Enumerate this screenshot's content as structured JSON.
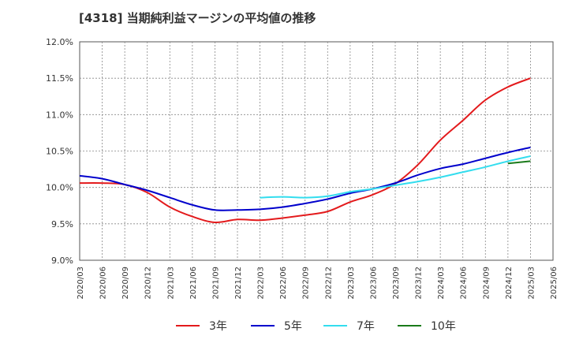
{
  "title": "[4318]  当期純利益マージンの平均値の推移",
  "chart_data": {
    "type": "line",
    "title": "[4318]  当期純利益マージンの平均値の推移",
    "xlabel": "",
    "ylabel": "",
    "ylim": [
      9.0,
      12.0
    ],
    "y_ticks": [
      "12.0%",
      "11.5%",
      "11.0%",
      "10.5%",
      "10.0%",
      "9.5%",
      "9.0%"
    ],
    "x_ticks": [
      "2020/03",
      "2020/06",
      "2020/09",
      "2020/12",
      "2021/03",
      "2021/06",
      "2021/09",
      "2021/12",
      "2022/03",
      "2022/06",
      "2022/09",
      "2022/12",
      "2023/03",
      "2023/06",
      "2023/09",
      "2023/12",
      "2024/03",
      "2024/06",
      "2024/09",
      "2024/12",
      "2025/03",
      "2025/06"
    ],
    "grid": true,
    "legend_position": "bottom",
    "colors": {
      "3年": "#e31a1c",
      "5年": "#0000cc",
      "7年": "#33ddee",
      "10年": "#1a7a1a"
    },
    "series": [
      {
        "name": "3年",
        "color": "#e31a1c",
        "points": [
          [
            "2020/03",
            10.06
          ],
          [
            "2020/06",
            10.06
          ],
          [
            "2020/09",
            10.04
          ],
          [
            "2020/12",
            9.93
          ],
          [
            "2021/03",
            9.73
          ],
          [
            "2021/06",
            9.6
          ],
          [
            "2021/09",
            9.52
          ],
          [
            "2021/12",
            9.56
          ],
          [
            "2022/03",
            9.55
          ],
          [
            "2022/06",
            9.58
          ],
          [
            "2022/09",
            9.62
          ],
          [
            "2022/12",
            9.67
          ],
          [
            "2023/03",
            9.8
          ],
          [
            "2023/06",
            9.9
          ],
          [
            "2023/09",
            10.05
          ],
          [
            "2023/12",
            10.31
          ],
          [
            "2024/03",
            10.65
          ],
          [
            "2024/06",
            10.92
          ],
          [
            "2024/09",
            11.2
          ],
          [
            "2024/12",
            11.38
          ],
          [
            "2025/03",
            11.5
          ]
        ]
      },
      {
        "name": "5年",
        "color": "#0000cc",
        "points": [
          [
            "2020/03",
            10.16
          ],
          [
            "2020/06",
            10.12
          ],
          [
            "2020/09",
            10.04
          ],
          [
            "2020/12",
            9.96
          ],
          [
            "2021/03",
            9.86
          ],
          [
            "2021/06",
            9.76
          ],
          [
            "2021/09",
            9.69
          ],
          [
            "2021/12",
            9.69
          ],
          [
            "2022/03",
            9.7
          ],
          [
            "2022/06",
            9.73
          ],
          [
            "2022/09",
            9.78
          ],
          [
            "2022/12",
            9.84
          ],
          [
            "2023/03",
            9.92
          ],
          [
            "2023/06",
            9.98
          ],
          [
            "2023/09",
            10.06
          ],
          [
            "2023/12",
            10.17
          ],
          [
            "2024/03",
            10.26
          ],
          [
            "2024/06",
            10.32
          ],
          [
            "2024/09",
            10.4
          ],
          [
            "2024/12",
            10.48
          ],
          [
            "2025/03",
            10.55
          ]
        ]
      },
      {
        "name": "7年",
        "color": "#33ddee",
        "points": [
          [
            "2022/03",
            9.86
          ],
          [
            "2022/06",
            9.87
          ],
          [
            "2022/09",
            9.86
          ],
          [
            "2022/12",
            9.88
          ],
          [
            "2023/03",
            9.94
          ],
          [
            "2023/06",
            9.98
          ],
          [
            "2023/09",
            10.03
          ],
          [
            "2023/12",
            10.08
          ],
          [
            "2024/03",
            10.14
          ],
          [
            "2024/06",
            10.21
          ],
          [
            "2024/09",
            10.28
          ],
          [
            "2024/12",
            10.36
          ],
          [
            "2025/03",
            10.43
          ]
        ]
      },
      {
        "name": "10年",
        "color": "#1a7a1a",
        "points": [
          [
            "2024/12",
            10.33
          ],
          [
            "2025/03",
            10.36
          ]
        ]
      }
    ]
  }
}
